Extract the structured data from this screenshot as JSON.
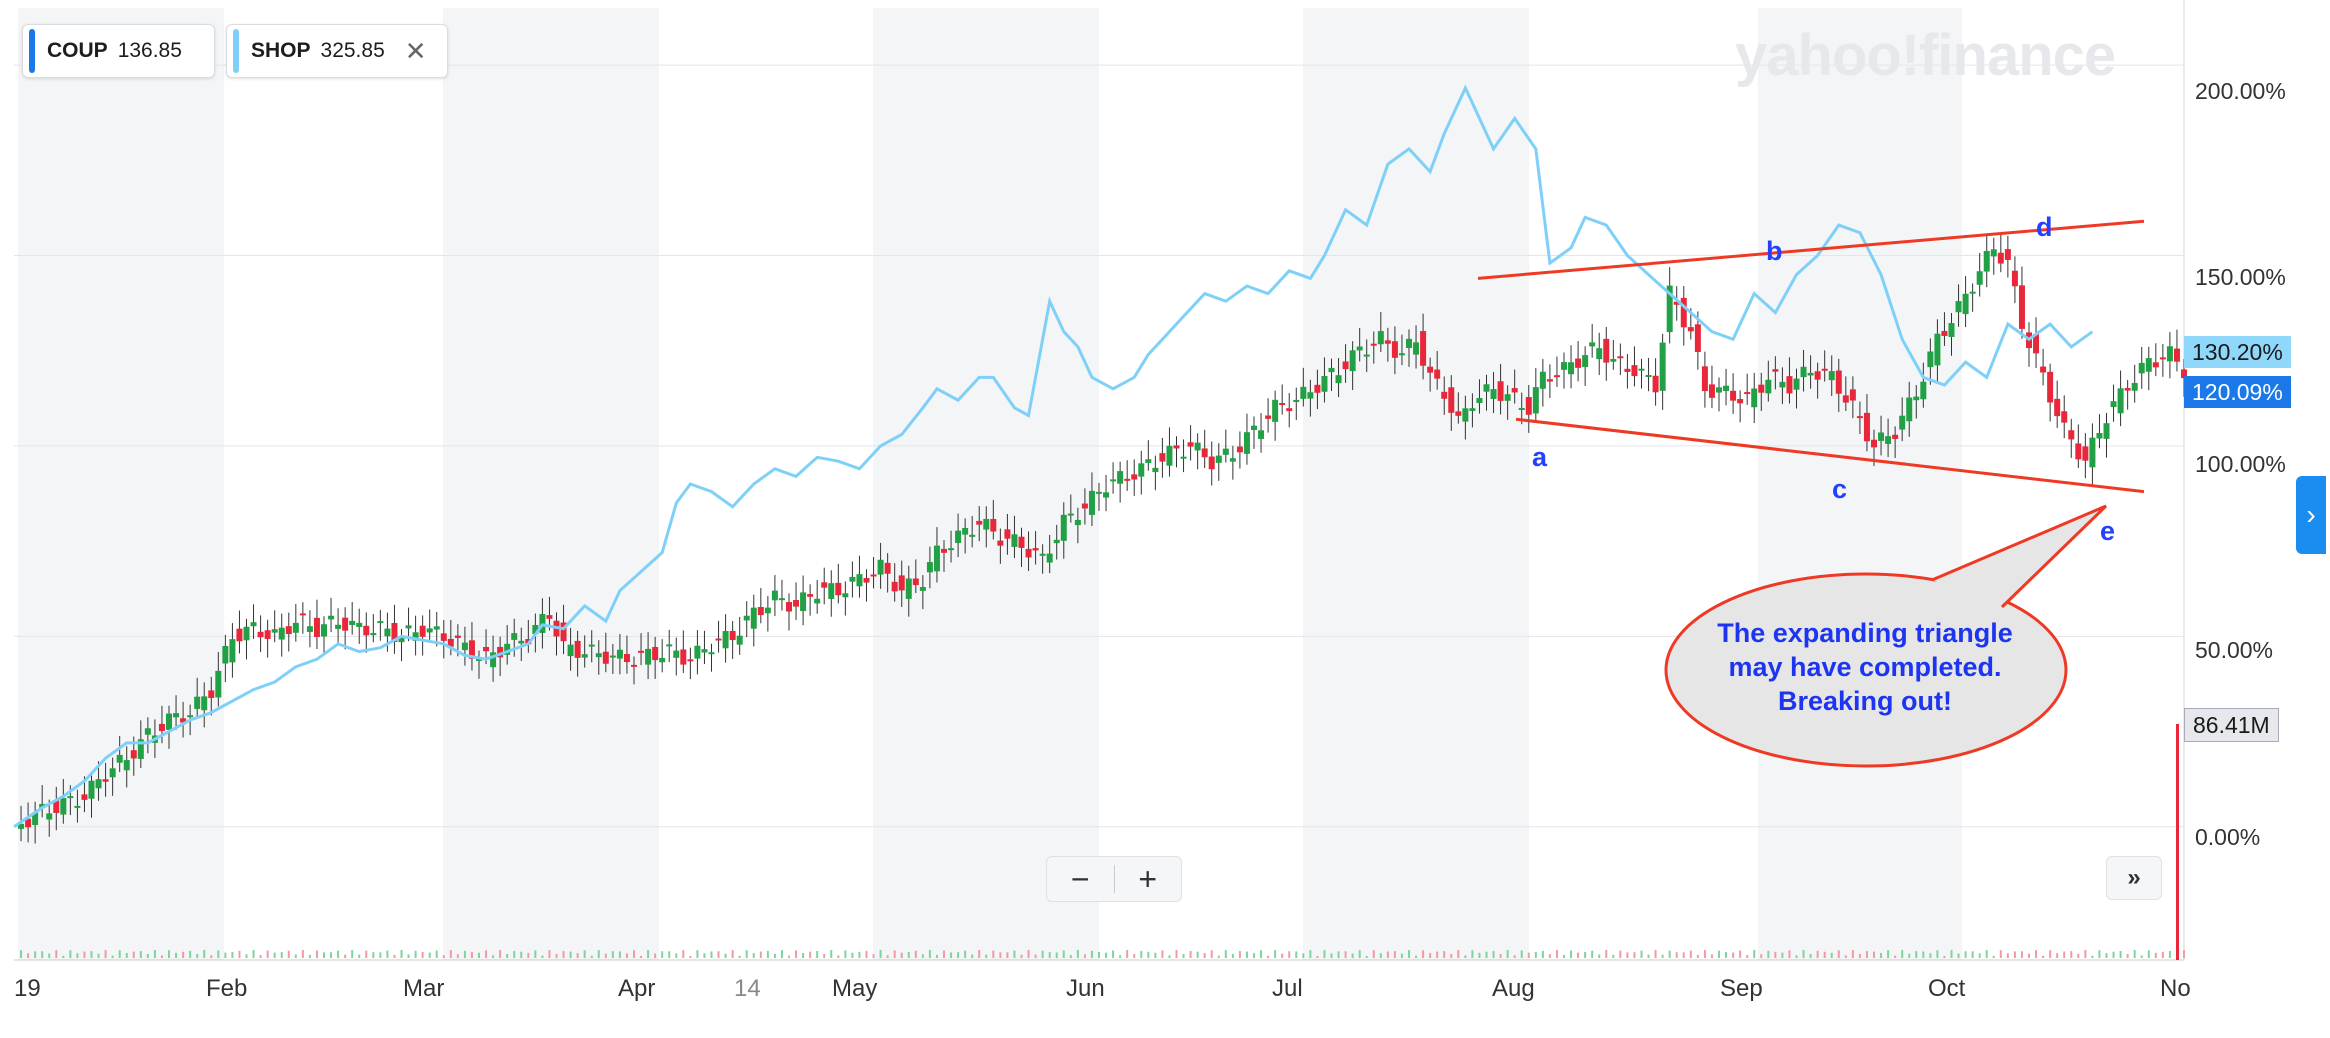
{
  "legend": [
    {
      "symbol": "COUP",
      "value": "136.85",
      "color": "#1b78e8"
    },
    {
      "symbol": "SHOP",
      "value": "325.85",
      "color": "#7fd0f8",
      "close_icon": "close-icon"
    }
  ],
  "watermark": "yahoo!finance",
  "zoom": {
    "minus": "−",
    "plus": "+"
  },
  "expand_label": "»",
  "side_tab_icon": "›",
  "price_tags": {
    "shop": "130.20%",
    "coup": "120.09%",
    "volume": "86.41M"
  },
  "annotations": {
    "a": "a",
    "b": "b",
    "c": "c",
    "d": "d",
    "e": "e"
  },
  "callout": {
    "line1": "The expanding triangle",
    "line2": "may have completed.",
    "line3": "Breaking out!"
  },
  "chart_data": {
    "type": "line",
    "x_ticks": [
      "19",
      "Feb",
      "Mar",
      "Apr",
      "14",
      "May",
      "Jun",
      "Jul",
      "Aug",
      "Sep",
      "Oct",
      "No"
    ],
    "y_ticks": [
      "200.00%",
      "150.00%",
      "100.00%",
      "50.00%",
      "0.00%"
    ],
    "ylim": [
      -35,
      215
    ],
    "grid": true,
    "series": [
      {
        "name": "SHOP",
        "color": "#7fd0f8",
        "points": [
          [
            0,
            0
          ],
          [
            8,
            5
          ],
          [
            14,
            8
          ],
          [
            20,
            12
          ],
          [
            26,
            18
          ],
          [
            32,
            22
          ],
          [
            38,
            22
          ],
          [
            44,
            25
          ],
          [
            50,
            28
          ],
          [
            56,
            30
          ],
          [
            62,
            33
          ],
          [
            68,
            36
          ],
          [
            74,
            38
          ],
          [
            80,
            42
          ],
          [
            86,
            44
          ],
          [
            92,
            48
          ],
          [
            98,
            46
          ],
          [
            104,
            47
          ],
          [
            110,
            50
          ],
          [
            116,
            49
          ],
          [
            122,
            48
          ],
          [
            128,
            45
          ],
          [
            134,
            44
          ],
          [
            140,
            46
          ],
          [
            146,
            48
          ],
          [
            150,
            53
          ],
          [
            156,
            52
          ],
          [
            162,
            58
          ],
          [
            168,
            54
          ],
          [
            172,
            62
          ],
          [
            178,
            67
          ],
          [
            184,
            72
          ],
          [
            188,
            85
          ],
          [
            192,
            90
          ],
          [
            198,
            88
          ],
          [
            204,
            84
          ],
          [
            210,
            90
          ],
          [
            216,
            94
          ],
          [
            222,
            92
          ],
          [
            228,
            97
          ],
          [
            234,
            96
          ],
          [
            240,
            94
          ],
          [
            246,
            100
          ],
          [
            252,
            103
          ],
          [
            258,
            110
          ],
          [
            262,
            115
          ],
          [
            268,
            112
          ],
          [
            274,
            118
          ],
          [
            278,
            118
          ],
          [
            284,
            110
          ],
          [
            288,
            108
          ],
          [
            294,
            138
          ],
          [
            298,
            130
          ],
          [
            302,
            126
          ],
          [
            306,
            118
          ],
          [
            312,
            115
          ],
          [
            318,
            118
          ],
          [
            322,
            124
          ],
          [
            326,
            128
          ],
          [
            332,
            134
          ],
          [
            338,
            140
          ],
          [
            344,
            138
          ],
          [
            350,
            142
          ],
          [
            356,
            140
          ],
          [
            362,
            146
          ],
          [
            368,
            144
          ],
          [
            372,
            150
          ],
          [
            378,
            162
          ],
          [
            384,
            158
          ],
          [
            390,
            174
          ],
          [
            396,
            178
          ],
          [
            402,
            172
          ],
          [
            406,
            182
          ],
          [
            412,
            194
          ],
          [
            416,
            186
          ],
          [
            420,
            178
          ],
          [
            426,
            186
          ],
          [
            432,
            178
          ],
          [
            436,
            148
          ],
          [
            442,
            152
          ],
          [
            446,
            160
          ],
          [
            452,
            158
          ],
          [
            458,
            150
          ],
          [
            464,
            145
          ],
          [
            470,
            140
          ],
          [
            476,
            135
          ],
          [
            482,
            130
          ],
          [
            488,
            128
          ],
          [
            494,
            140
          ],
          [
            500,
            135
          ],
          [
            506,
            145
          ],
          [
            512,
            150
          ],
          [
            518,
            158
          ],
          [
            524,
            156
          ],
          [
            530,
            145
          ],
          [
            536,
            128
          ],
          [
            542,
            118
          ],
          [
            548,
            116
          ],
          [
            554,
            122
          ],
          [
            560,
            118
          ],
          [
            566,
            132
          ],
          [
            572,
            128
          ],
          [
            578,
            132
          ],
          [
            584,
            126
          ],
          [
            590,
            130
          ]
        ]
      },
      {
        "name": "COUP",
        "color": "#2a9e3a",
        "points": [
          [
            0,
            0
          ],
          [
            8,
            4
          ],
          [
            14,
            6
          ],
          [
            20,
            8
          ],
          [
            26,
            14
          ],
          [
            32,
            18
          ],
          [
            38,
            24
          ],
          [
            44,
            28
          ],
          [
            50,
            30
          ],
          [
            56,
            36
          ],
          [
            62,
            50
          ],
          [
            68,
            52
          ],
          [
            74,
            50
          ],
          [
            80,
            54
          ],
          [
            86,
            52
          ],
          [
            92,
            54
          ],
          [
            98,
            52
          ],
          [
            104,
            52
          ],
          [
            110,
            50
          ],
          [
            116,
            52
          ],
          [
            122,
            50
          ],
          [
            128,
            47
          ],
          [
            134,
            44
          ],
          [
            140,
            48
          ],
          [
            146,
            50
          ],
          [
            152,
            56
          ],
          [
            156,
            47
          ],
          [
            162,
            46
          ],
          [
            168,
            45
          ],
          [
            174,
            44
          ],
          [
            180,
            45
          ],
          [
            186,
            46
          ],
          [
            192,
            44
          ],
          [
            198,
            48
          ],
          [
            204,
            50
          ],
          [
            210,
            56
          ],
          [
            216,
            60
          ],
          [
            222,
            58
          ],
          [
            228,
            62
          ],
          [
            234,
            62
          ],
          [
            240,
            65
          ],
          [
            246,
            68
          ],
          [
            252,
            62
          ],
          [
            258,
            65
          ],
          [
            262,
            72
          ],
          [
            268,
            76
          ],
          [
            274,
            80
          ],
          [
            280,
            76
          ],
          [
            286,
            74
          ],
          [
            292,
            70
          ],
          [
            298,
            80
          ],
          [
            304,
            84
          ],
          [
            310,
            90
          ],
          [
            316,
            92
          ],
          [
            322,
            95
          ],
          [
            328,
            98
          ],
          [
            334,
            100
          ],
          [
            340,
            96
          ],
          [
            346,
            98
          ],
          [
            352,
            104
          ],
          [
            358,
            110
          ],
          [
            364,
            112
          ],
          [
            370,
            116
          ],
          [
            376,
            120
          ],
          [
            382,
            125
          ],
          [
            388,
            128
          ],
          [
            394,
            124
          ],
          [
            398,
            128
          ],
          [
            402,
            118
          ],
          [
            406,
            114
          ],
          [
            410,
            106
          ],
          [
            414,
            112
          ],
          [
            420,
            115
          ],
          [
            426,
            112
          ],
          [
            430,
            110
          ],
          [
            434,
            118
          ],
          [
            440,
            120
          ],
          [
            446,
            124
          ],
          [
            450,
            126
          ],
          [
            454,
            122
          ],
          [
            460,
            120
          ],
          [
            466,
            116
          ],
          [
            470,
            140
          ],
          [
            476,
            130
          ],
          [
            480,
            115
          ],
          [
            486,
            114
          ],
          [
            492,
            112
          ],
          [
            498,
            118
          ],
          [
            504,
            116
          ],
          [
            510,
            120
          ],
          [
            516,
            118
          ],
          [
            522,
            110
          ],
          [
            528,
            100
          ],
          [
            534,
            104
          ],
          [
            540,
            114
          ],
          [
            546,
            128
          ],
          [
            552,
            136
          ],
          [
            558,
            146
          ],
          [
            562,
            152
          ],
          [
            566,
            148
          ],
          [
            570,
            132
          ],
          [
            576,
            118
          ],
          [
            582,
            104
          ],
          [
            588,
            96
          ],
          [
            594,
            108
          ],
          [
            600,
            116
          ],
          [
            606,
            122
          ],
          [
            612,
            124
          ],
          [
            616,
            120
          ]
        ]
      }
    ],
    "volume_label": "86.41M",
    "trendlines": [
      {
        "name": "upper",
        "from": [
          "Jul 28",
          144
        ],
        "to": [
          "Oct 31",
          159
        ]
      },
      {
        "name": "lower",
        "from": [
          "Aug 1",
          107
        ],
        "to": [
          "Oct 31",
          88
        ]
      }
    ]
  }
}
